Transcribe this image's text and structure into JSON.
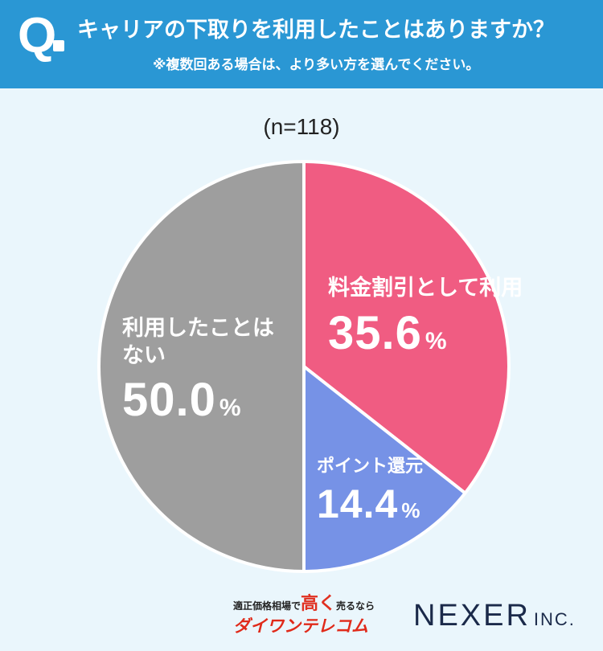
{
  "header": {
    "q_mark": "Q",
    "question": "キャリアの下取りを利用したことはありますか？",
    "note": "※複数回ある場合は、より多い方を選んでください。"
  },
  "sample": "(n=118)",
  "chart_data": {
    "type": "pie",
    "slices": [
      {
        "label": "料金割引として利用",
        "value": 35.6,
        "display": "35.6",
        "unit": "%",
        "color": "#f05c82"
      },
      {
        "label": "ポイント還元",
        "value": 14.4,
        "display": "14.4",
        "unit": "%",
        "color": "#7692e6"
      },
      {
        "label_line1": "利用したことは",
        "label_line2": "ない",
        "value": 50.0,
        "display": "50.0",
        "unit": "%",
        "color": "#9e9e9e"
      }
    ]
  },
  "footer": {
    "brand_tagline_pre": "適正価格相場で",
    "brand_tagline_big": "高く",
    "brand_tagline_post": "売るなら",
    "brand_name": "ダイワンテレコム",
    "company": "NEXER",
    "company_suffix": "INC."
  }
}
